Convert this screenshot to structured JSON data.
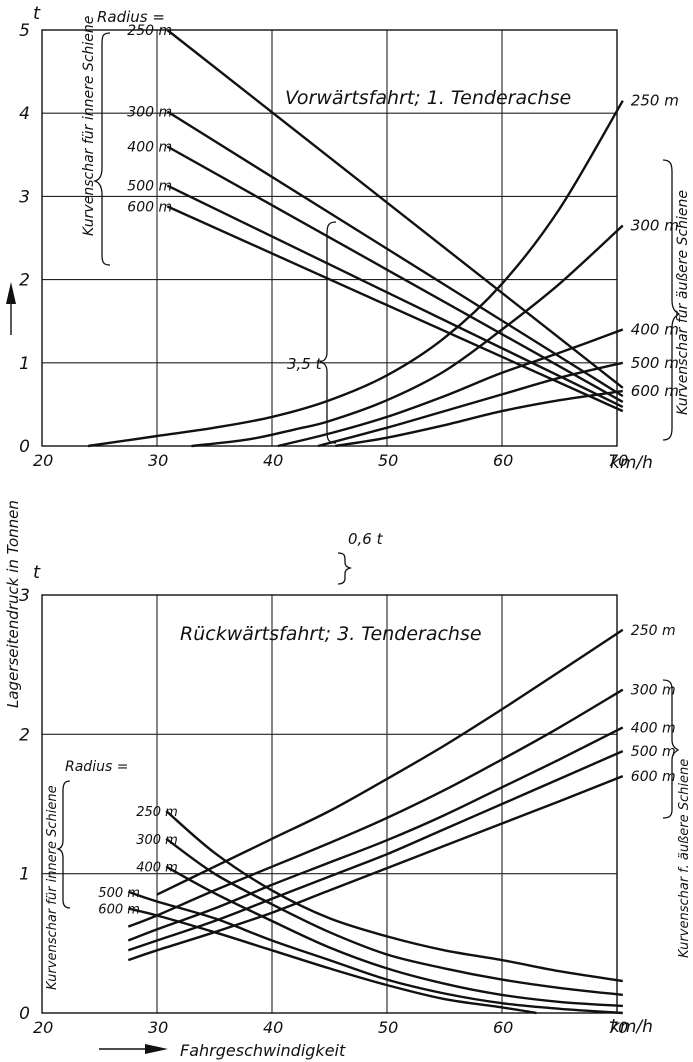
{
  "figure": {
    "ylabel": "Lagerseitendruck in Tonnen",
    "xlabel": "Fahrgeschwindigkeit"
  },
  "chart_data": [
    {
      "type": "line",
      "title": "Vorwärtsfahrt; 1. Tenderachse",
      "x_unit": "km/h",
      "y_unit": "t",
      "xlim": [
        20,
        70
      ],
      "ylim": [
        0,
        5
      ],
      "x_ticks": [
        "20",
        "30",
        "40",
        "50",
        "60",
        "70"
      ],
      "y_ticks": [
        "0",
        "1",
        "2",
        "3",
        "4",
        "5"
      ],
      "grid": true,
      "radius_header": "Radius =",
      "inner_group_label": "Kurvenschar für innere Schiene",
      "outer_group_label": "Kurvenschar für äußere Schiene",
      "annotations": [
        "3,5 t",
        "0,6 t"
      ],
      "inner_series": [
        {
          "name": "250 m",
          "x": [
            30.9,
            70.5
          ],
          "y": [
            5.0,
            0.7
          ]
        },
        {
          "name": "300 m",
          "x": [
            30.9,
            70.5
          ],
          "y": [
            4.02,
            0.6
          ]
        },
        {
          "name": "400 m",
          "x": [
            30.9,
            70.5
          ],
          "y": [
            3.6,
            0.53
          ]
        },
        {
          "name": "500 m",
          "x": [
            30.9,
            70.5
          ],
          "y": [
            3.13,
            0.47
          ]
        },
        {
          "name": "600 m",
          "x": [
            30.9,
            70.5
          ],
          "y": [
            2.88,
            0.42
          ]
        }
      ],
      "outer_series": [
        {
          "name": "250 m",
          "x": [
            24.0,
            30,
            35,
            40,
            45,
            50,
            55,
            60,
            65,
            70.5
          ],
          "y": [
            0,
            0.12,
            0.22,
            0.35,
            0.55,
            0.85,
            1.3,
            1.95,
            2.85,
            4.15
          ]
        },
        {
          "name": "300 m",
          "x": [
            33.0,
            38,
            42,
            45,
            50,
            55,
            60,
            65,
            70.5
          ],
          "y": [
            0,
            0.08,
            0.2,
            0.3,
            0.55,
            0.9,
            1.4,
            1.95,
            2.65
          ]
        },
        {
          "name": "400 m",
          "x": [
            40.5,
            45,
            50,
            55,
            60,
            65,
            70.5
          ],
          "y": [
            0,
            0.15,
            0.35,
            0.6,
            0.88,
            1.12,
            1.4
          ]
        },
        {
          "name": "500 m",
          "x": [
            44.0,
            50,
            55,
            60,
            65,
            70.5
          ],
          "y": [
            0,
            0.22,
            0.42,
            0.62,
            0.82,
            1.0
          ]
        },
        {
          "name": "600 m",
          "x": [
            45.5,
            50,
            55,
            60,
            65,
            70.5
          ],
          "y": [
            0,
            0.1,
            0.25,
            0.42,
            0.55,
            0.66
          ]
        }
      ]
    },
    {
      "type": "line",
      "title": "Rückwärtsfahrt; 3. Tenderachse",
      "x_unit": "km/h",
      "y_unit": "t",
      "xlim": [
        20,
        70
      ],
      "ylim": [
        0,
        3
      ],
      "x_ticks": [
        "20",
        "30",
        "40",
        "50",
        "60",
        "70"
      ],
      "y_ticks": [
        "0",
        "1",
        "2",
        "3"
      ],
      "grid": true,
      "radius_header": "Radius =",
      "inner_group_label": "Kurvenschar für innere Schiene",
      "outer_group_label": "Kurvenschar f. äußere Schiene",
      "inner_series": [
        {
          "name": "250 m",
          "x": [
            30.8,
            35,
            40,
            45,
            50,
            55,
            60,
            65,
            70.5
          ],
          "y": [
            1.45,
            1.15,
            0.88,
            0.68,
            0.55,
            0.45,
            0.38,
            0.3,
            0.23
          ]
        },
        {
          "name": "300 m",
          "x": [
            30.8,
            35,
            40,
            45,
            50,
            55,
            60,
            65,
            70.5
          ],
          "y": [
            1.25,
            1.0,
            0.78,
            0.58,
            0.42,
            0.32,
            0.24,
            0.18,
            0.13
          ]
        },
        {
          "name": "400 m",
          "x": [
            30.8,
            35,
            40,
            45,
            50,
            55,
            60,
            65,
            70.5
          ],
          "y": [
            1.05,
            0.86,
            0.66,
            0.47,
            0.32,
            0.21,
            0.13,
            0.08,
            0.05
          ]
        },
        {
          "name": "500 m",
          "x": [
            27.5,
            30,
            35,
            40,
            45,
            50,
            55,
            60,
            65,
            70.5
          ],
          "y": [
            0.87,
            0.8,
            0.68,
            0.52,
            0.38,
            0.24,
            0.14,
            0.07,
            0.03,
            0
          ]
        },
        {
          "name": "600 m",
          "x": [
            27.5,
            30,
            35,
            40,
            45,
            50,
            55,
            60,
            63.0
          ],
          "y": [
            0.75,
            0.7,
            0.58,
            0.45,
            0.32,
            0.2,
            0.1,
            0.04,
            0
          ]
        }
      ],
      "outer_series": [
        {
          "name": "250 m",
          "x": [
            30,
            35,
            40,
            45,
            50,
            55,
            60,
            65,
            70.5
          ],
          "y": [
            0.85,
            1.05,
            1.25,
            1.45,
            1.68,
            1.92,
            2.18,
            2.45,
            2.75
          ]
        },
        {
          "name": "300 m",
          "x": [
            27.5,
            30,
            35,
            40,
            45,
            50,
            55,
            60,
            65,
            70.5
          ],
          "y": [
            0.62,
            0.7,
            0.88,
            1.05,
            1.22,
            1.4,
            1.6,
            1.82,
            2.05,
            2.32
          ]
        },
        {
          "name": "400 m",
          "x": [
            27.5,
            30,
            35,
            40,
            45,
            50,
            55,
            60,
            65,
            70.5
          ],
          "y": [
            0.52,
            0.6,
            0.75,
            0.92,
            1.08,
            1.24,
            1.42,
            1.62,
            1.82,
            2.05
          ]
        },
        {
          "name": "500 m",
          "x": [
            27.5,
            30,
            35,
            40,
            45,
            50,
            55,
            60,
            65,
            70.5
          ],
          "y": [
            0.45,
            0.52,
            0.66,
            0.82,
            0.98,
            1.14,
            1.32,
            1.5,
            1.68,
            1.88
          ]
        },
        {
          "name": "600 m",
          "x": [
            27.5,
            30,
            35,
            40,
            45,
            50,
            55,
            60,
            65,
            70.5
          ],
          "y": [
            0.38,
            0.45,
            0.58,
            0.72,
            0.88,
            1.04,
            1.2,
            1.36,
            1.52,
            1.7
          ]
        }
      ]
    }
  ]
}
